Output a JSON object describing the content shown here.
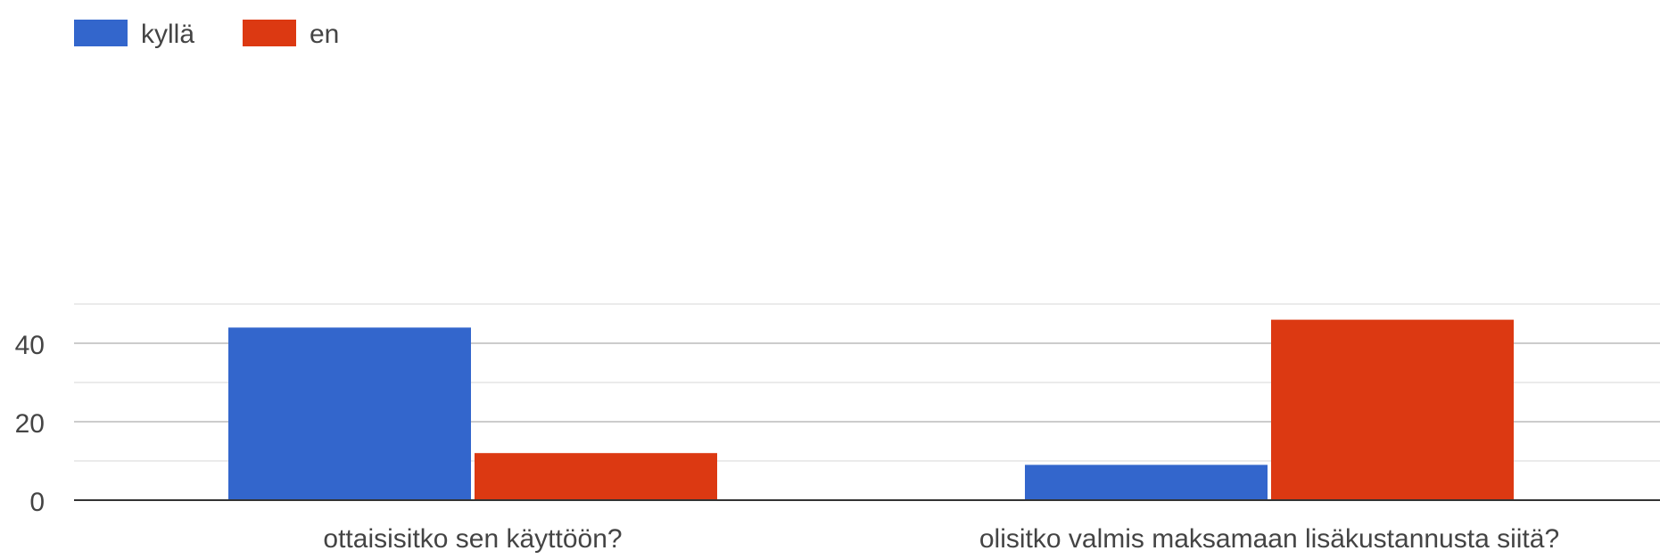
{
  "chart_data": {
    "type": "bar",
    "categories": [
      "ottaisisitko sen käyttöön?",
      "olisitko valmis maksamaan lisäkustannusta siitä?"
    ],
    "series": [
      {
        "name": "kyllä",
        "values": [
          44,
          9
        ],
        "color": "#3366cc"
      },
      {
        "name": "en",
        "values": [
          12,
          46
        ],
        "color": "#dc3912"
      }
    ],
    "y_ticks": [
      0,
      20,
      40
    ],
    "ylim": [
      0,
      50
    ],
    "grid": true,
    "legend": "top-left"
  }
}
